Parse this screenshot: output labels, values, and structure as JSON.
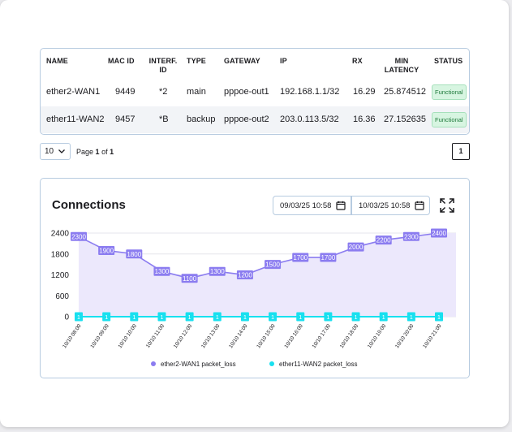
{
  "table": {
    "headers": {
      "name": "NAME",
      "mac_id": "MAC ID",
      "interf_id": "INTERF. ID",
      "type": "TYPE",
      "gateway": "GATEWAY",
      "ip": "IP",
      "rx": "RX",
      "min_latency": "MIN LATENCY",
      "status": "STATUS"
    },
    "rows": [
      {
        "name": "ether2-WAN1",
        "mac_id": "9449",
        "interf_id": "*2",
        "type": "main",
        "gateway": "pppoe-out1",
        "ip": "192.168.1.1/32",
        "rx": "16.29",
        "min_latency": "25.874512",
        "status": "Functional"
      },
      {
        "name": "ether11-WAN2",
        "mac_id": "9457",
        "interf_id": "*B",
        "type": "backup",
        "gateway": "pppoe-out2",
        "ip": "203.0.113.5/32",
        "rx": "16.36",
        "min_latency": "27.152635",
        "status": "Functional"
      }
    ]
  },
  "pagination": {
    "page_size": "10",
    "page_label": "Page",
    "current_page": "1",
    "of_label": "of",
    "total_pages": "1",
    "page_button": "1"
  },
  "chart_card": {
    "title": "Connections",
    "date_from": "09/03/25 10:58",
    "date_to": "10/03/25 10:58"
  },
  "colors": {
    "series1": "#8b7cf0",
    "series2": "#18e0ef",
    "area": "#ece8fc"
  },
  "chart_data": {
    "type": "area",
    "x": [
      "10/10 08:00",
      "10/10 09:00",
      "10/10 10:00",
      "10/10 11:00",
      "10/10 12:00",
      "10/10 13:00",
      "10/10 14:00",
      "10/10 15:00",
      "10/10 16:00",
      "10/10 17:00",
      "10/10 18:00",
      "10/10 19:00",
      "10/10 20:00",
      "10/10 21:00"
    ],
    "series": [
      {
        "name": "ether2-WAN1 packet_loss",
        "values": [
          2300,
          1900,
          1800,
          1300,
          1100,
          1300,
          1200,
          1500,
          1700,
          1700,
          2000,
          2200,
          2300,
          2400
        ]
      },
      {
        "name": "ether11-WAN2 packet_loss",
        "values": [
          1,
          1,
          1,
          1,
          1,
          1,
          1,
          1,
          1,
          1,
          1,
          1,
          1,
          1
        ]
      }
    ],
    "yticks": [
      0,
      600,
      1200,
      1800,
      2400
    ],
    "ylim": [
      0,
      2400
    ],
    "grid": true,
    "legend": "bottom"
  }
}
